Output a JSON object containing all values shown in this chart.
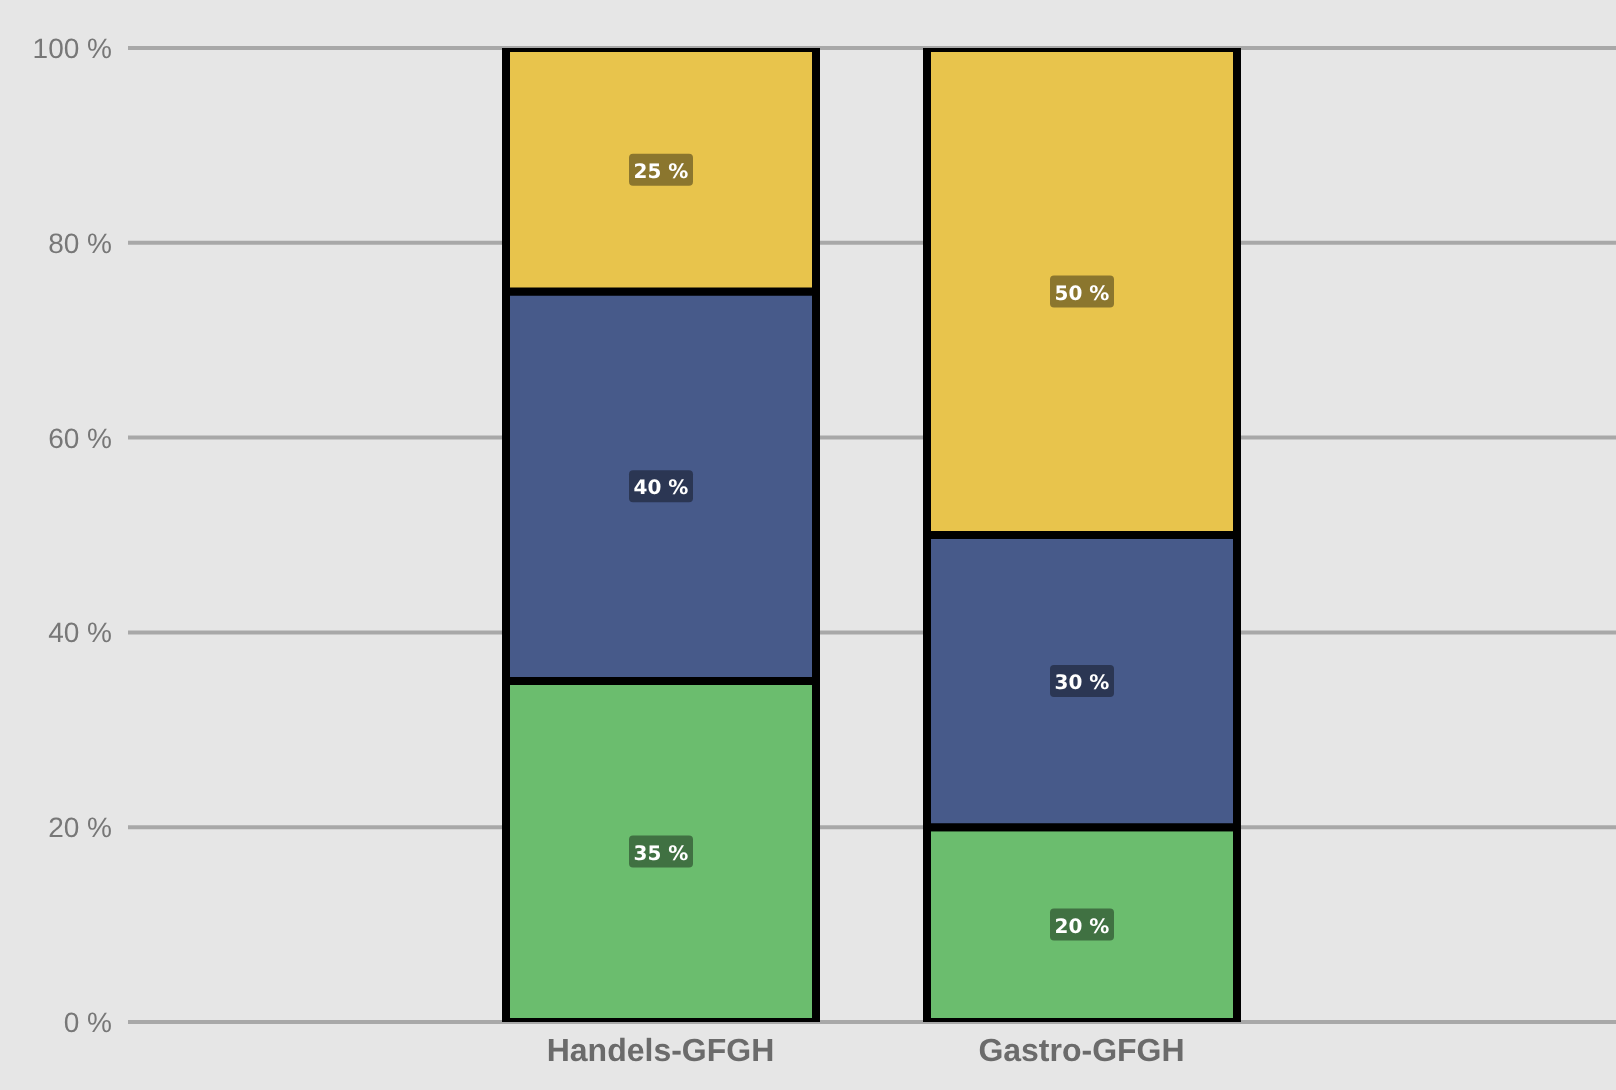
{
  "chart_data": {
    "type": "bar",
    "stacked": true,
    "categories": [
      "Handels-GFGH",
      "Gastro-GFGH"
    ],
    "series": [
      {
        "color": "#6bbd6e",
        "values": [
          35,
          20
        ],
        "value_labels": [
          "35 %",
          "20 %"
        ]
      },
      {
        "color": "#475a8a",
        "values": [
          40,
          30
        ],
        "value_labels": [
          "40 %",
          "30 %"
        ]
      },
      {
        "color": "#e8c44c",
        "values": [
          25,
          50
        ],
        "value_labels": [
          "25 %",
          "50 %"
        ]
      }
    ],
    "ylim": [
      0,
      100
    ],
    "yticks": [
      {
        "value": 0,
        "label": "0 %"
      },
      {
        "value": 20,
        "label": "20 %"
      },
      {
        "value": 40,
        "label": "40 %"
      },
      {
        "value": 60,
        "label": "60 %"
      },
      {
        "value": 80,
        "label": "80 %"
      },
      {
        "value": 100,
        "label": "100 %"
      }
    ],
    "grid": "y",
    "legend": false
  }
}
